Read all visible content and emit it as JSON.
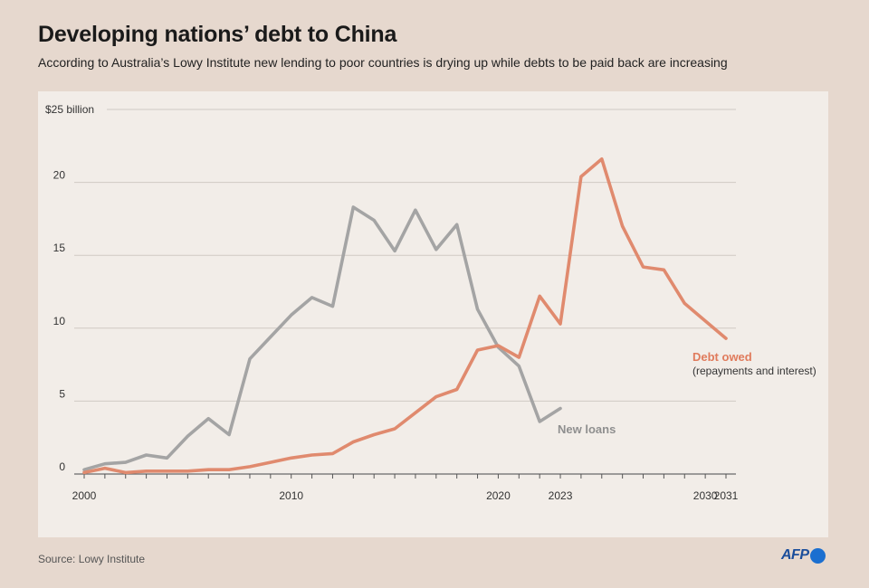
{
  "header": {
    "title": "Developing nations’ debt to China",
    "subtitle": "According to Australia’s Lowy Institute new lending to poor countries is drying up while debts to be paid back are increasing"
  },
  "footer": {
    "source": "Source: Lowy Institute",
    "logo_text": "AFP"
  },
  "colors": {
    "new_loans": "#a4a4a4",
    "debt_owed": "#e08a6e",
    "grid": "#cfc9c3",
    "axis": "#555555"
  },
  "chart_data": {
    "type": "line",
    "title": "Developing nations’ debt to China",
    "ylabel": "$25 billion",
    "ylim": [
      0,
      25
    ],
    "xlim": [
      2000,
      2031
    ],
    "x_ticks": [
      {
        "value": 2000,
        "label": "2000"
      },
      {
        "value": 2010,
        "label": "2010"
      },
      {
        "value": 2020,
        "label": "2020"
      },
      {
        "value": 2023,
        "label": "2023"
      },
      {
        "value": 2030,
        "label": "2030"
      },
      {
        "value": 2031,
        "label": "2031"
      }
    ],
    "y_ticks": [
      {
        "value": 0,
        "label": "0"
      },
      {
        "value": 5,
        "label": "5"
      },
      {
        "value": 10,
        "label": "10"
      },
      {
        "value": 15,
        "label": "15"
      },
      {
        "value": 20,
        "label": "20"
      },
      {
        "value": 25,
        "label": "$25 billion"
      }
    ],
    "grid": true,
    "series": [
      {
        "name": "New loans",
        "x": [
          2000,
          2001,
          2002,
          2003,
          2004,
          2005,
          2006,
          2007,
          2008,
          2009,
          2010,
          2011,
          2012,
          2013,
          2014,
          2015,
          2016,
          2017,
          2018,
          2019,
          2020,
          2021,
          2022,
          2023
        ],
        "values": [
          0.3,
          0.7,
          0.8,
          1.3,
          1.1,
          2.6,
          3.8,
          2.7,
          7.9,
          9.4,
          10.9,
          12.1,
          11.5,
          18.3,
          17.4,
          15.3,
          18.1,
          15.4,
          17.1,
          11.3,
          8.7,
          7.4,
          3.6,
          4.5
        ]
      },
      {
        "name": "Debt owed",
        "x": [
          2000,
          2001,
          2002,
          2003,
          2004,
          2005,
          2006,
          2007,
          2008,
          2009,
          2010,
          2011,
          2012,
          2013,
          2014,
          2015,
          2016,
          2017,
          2018,
          2019,
          2020,
          2021,
          2022,
          2023,
          2024,
          2025,
          2026,
          2027,
          2028,
          2029,
          2030,
          2031
        ],
        "values": [
          0.1,
          0.4,
          0.1,
          0.2,
          0.2,
          0.2,
          0.3,
          0.3,
          0.5,
          0.8,
          1.1,
          1.3,
          1.4,
          2.2,
          2.7,
          3.1,
          4.2,
          5.3,
          5.8,
          8.5,
          8.8,
          8.0,
          12.2,
          10.3,
          20.4,
          21.6,
          17.0,
          14.2,
          14.0,
          11.7,
          10.5,
          9.3
        ]
      }
    ],
    "annotations": {
      "new_loans_label": "New loans",
      "debt_owed_label": "Debt owed",
      "debt_owed_sublabel": "(repayments and interest)"
    }
  }
}
